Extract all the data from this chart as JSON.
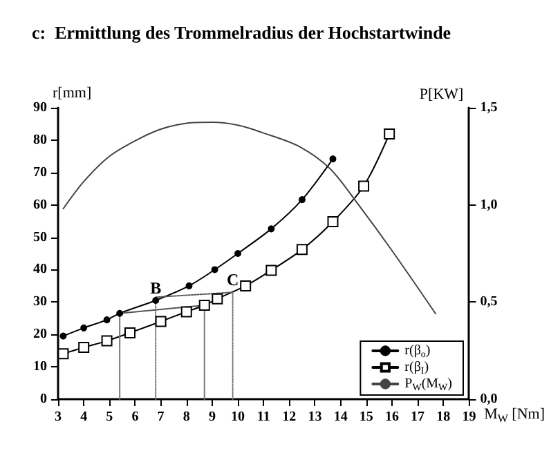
{
  "chart_data": {
    "type": "line",
    "title": "c:  Ermittlung des Trommelradius der Hochstartwinde",
    "xlabel": "M$_{W}$ [Nm]",
    "ylabel": "r[mm]",
    "y2label": "P[KW]",
    "xlim": [
      3,
      19
    ],
    "xticks": [
      3,
      4,
      5,
      6,
      7,
      8,
      9,
      10,
      11,
      12,
      13,
      14,
      15,
      16,
      17,
      18,
      19
    ],
    "ylim": [
      0,
      90
    ],
    "yticks": [
      0,
      10,
      20,
      30,
      40,
      50,
      60,
      70,
      80,
      90
    ],
    "y2lim": [
      0,
      1.5
    ],
    "y2ticks": [
      {
        "value": 0,
        "label": "0,0"
      },
      {
        "value": 0.5,
        "label": "0,5"
      },
      {
        "value": 1,
        "label": "1,0"
      },
      {
        "value": 1.5,
        "label": "1,5"
      }
    ],
    "legend": "bottom right",
    "grid": false,
    "annotations": [
      {
        "text": "B",
        "x": 6.8,
        "y": 30.5
      },
      {
        "text": "C",
        "x": 9.8,
        "y": 33
      }
    ],
    "series": [
      {
        "name": "r(β$_{o}$)",
        "color": "#000000",
        "marker": "circle",
        "x": [
          3.2,
          4,
          4.9,
          5.4,
          6.8,
          8.1,
          9.1,
          10,
          11.3,
          12.5,
          13.7
        ],
        "values": [
          19.5,
          22,
          24.5,
          26.5,
          30.5,
          35,
          40,
          45,
          52.6,
          61.6,
          74.2
        ]
      },
      {
        "name": "r(β$_{I}$)",
        "color": "#000000",
        "marker": "square",
        "x": [
          3.2,
          4,
          4.9,
          5.8,
          7,
          8,
          8.7,
          9.2,
          10.3,
          11.3,
          12.5,
          13.7,
          14.9,
          15.9
        ],
        "values": [
          14,
          16,
          18,
          20.5,
          24,
          27,
          29,
          31,
          35,
          39.8,
          46.2,
          54.8,
          65.8,
          81.9
        ]
      },
      {
        "name": "P$_{W}$(M$_{W}$)",
        "color": "#444444",
        "marker": "none",
        "axis": "y2",
        "x": [
          3.2,
          4,
          5,
          6,
          7,
          8,
          9,
          10,
          11,
          12.4,
          13.6,
          14.7,
          16,
          17.7
        ],
        "values": [
          0.98,
          1.12,
          1.25,
          1.33,
          1.39,
          1.42,
          1.425,
          1.41,
          1.37,
          1.3,
          1.185,
          1.0,
          0.765,
          0.44
        ]
      },
      {
        "color": "#777777",
        "marker": "none",
        "line_style": "solid",
        "x": [
          5.4,
          5.4
        ],
        "values": [
          0,
          26.5
        ]
      },
      {
        "color": "#777777",
        "marker": "none",
        "line_style": "dotted",
        "x": [
          6.8,
          6.8
        ],
        "values": [
          0,
          30.5
        ]
      },
      {
        "color": "#777777",
        "marker": "none",
        "line_style": "solid",
        "x": [
          8.7,
          8.7
        ],
        "values": [
          0,
          29
        ]
      },
      {
        "color": "#777777",
        "marker": "none",
        "line_style": "dotted",
        "x": [
          9.8,
          9.8
        ],
        "values": [
          0,
          33
        ]
      },
      {
        "color": "#555555",
        "marker": "none",
        "line_style": "solid",
        "x": [
          5.4,
          8.7
        ],
        "values": [
          26.5,
          29
        ]
      },
      {
        "color": "#555555",
        "marker": "none",
        "line_style": "dotted",
        "x": [
          6.8,
          9.8
        ],
        "values": [
          31.5,
          33
        ]
      }
    ]
  }
}
